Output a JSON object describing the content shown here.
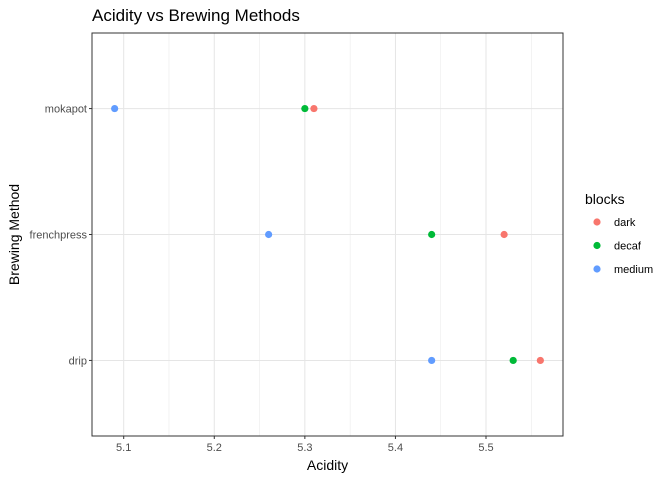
{
  "chart_data": {
    "type": "scatter",
    "title": "Acidity vs Brewing Methods",
    "xlabel": "Acidity",
    "ylabel": "Brewing Method",
    "xlim": [
      5.065,
      5.585
    ],
    "x_ticks": [
      "5.1",
      "5.2",
      "5.3",
      "5.4",
      "5.5"
    ],
    "x_tick_values": [
      5.1,
      5.2,
      5.3,
      5.4,
      5.5
    ],
    "categories": [
      "drip",
      "frenchpress",
      "mokapot"
    ],
    "grid": true,
    "legend": {
      "title": "blocks",
      "position": "right"
    },
    "series": [
      {
        "name": "dark",
        "color": "#F8766D",
        "points": [
          {
            "x": 5.56,
            "y": "drip"
          },
          {
            "x": 5.52,
            "y": "frenchpress"
          },
          {
            "x": 5.31,
            "y": "mokapot"
          }
        ]
      },
      {
        "name": "decaf",
        "color": "#00BA38",
        "points": [
          {
            "x": 5.53,
            "y": "drip"
          },
          {
            "x": 5.44,
            "y": "frenchpress"
          },
          {
            "x": 5.3,
            "y": "mokapot"
          }
        ]
      },
      {
        "name": "medium",
        "color": "#619CFF",
        "points": [
          {
            "x": 5.44,
            "y": "drip"
          },
          {
            "x": 5.26,
            "y": "frenchpress"
          },
          {
            "x": 5.09,
            "y": "mokapot"
          }
        ]
      }
    ]
  }
}
